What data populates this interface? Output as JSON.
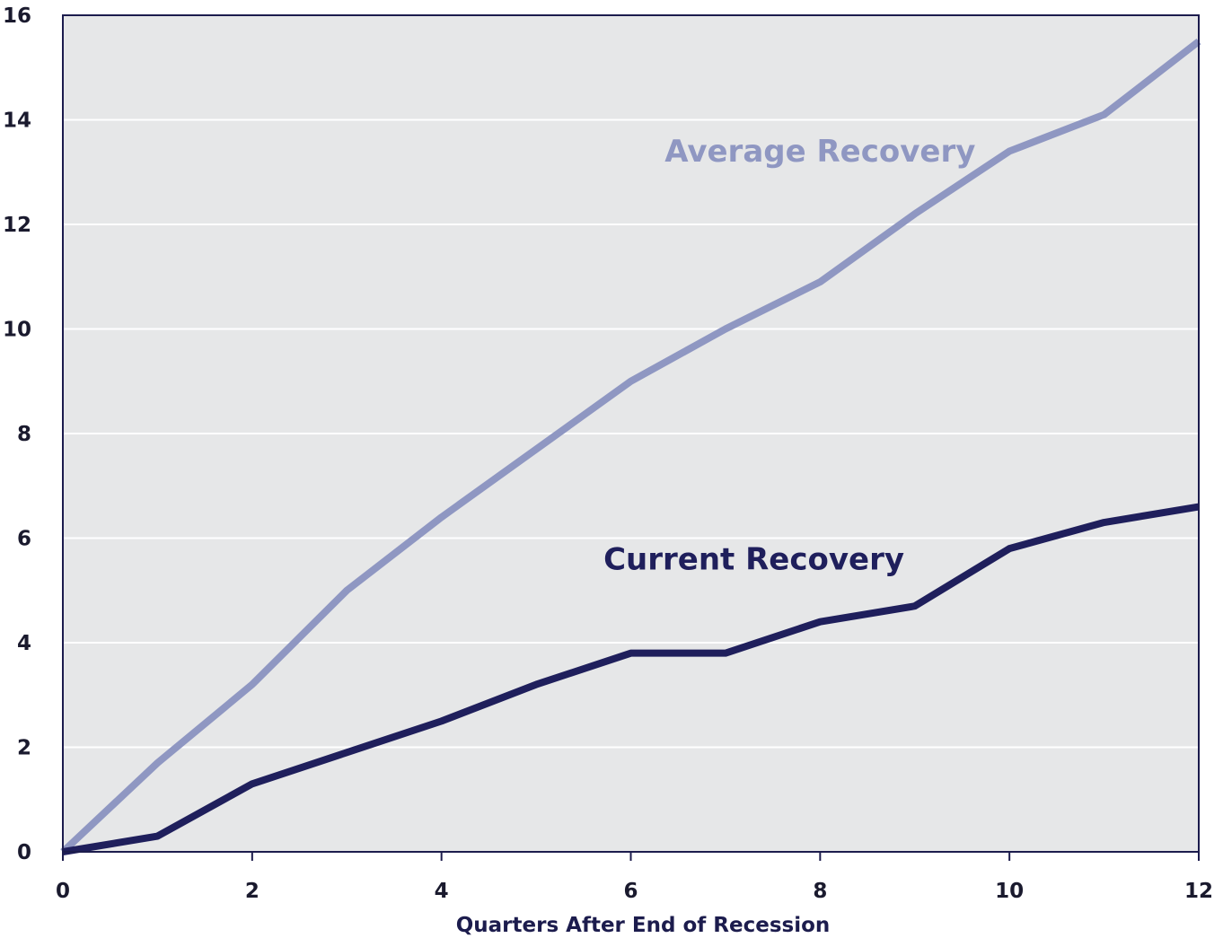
{
  "chart_data": {
    "type": "line",
    "title": "",
    "xlabel": "Quarters After End of Recession",
    "ylabel": "",
    "xlim": [
      0,
      12
    ],
    "ylim": [
      0,
      16
    ],
    "x_ticks": [
      0,
      2,
      4,
      6,
      8,
      10,
      12
    ],
    "y_ticks": [
      0,
      2,
      4,
      6,
      8,
      10,
      12,
      14,
      16
    ],
    "grid": true,
    "legend": "inline labels",
    "x": [
      0,
      1,
      2,
      3,
      4,
      5,
      6,
      7,
      8,
      9,
      10,
      11,
      12
    ],
    "series": [
      {
        "name": "Average Recovery",
        "color": "#8f97c2",
        "values": [
          0,
          1.7,
          3.2,
          5.0,
          6.4,
          7.7,
          9.0,
          10.0,
          10.9,
          12.2,
          13.4,
          14.1,
          15.5
        ],
        "label_at": [
          8.0,
          13.2
        ]
      },
      {
        "name": "Current Recovery",
        "color": "#1f1f5c",
        "values": [
          0,
          0.3,
          1.3,
          1.9,
          2.5,
          3.2,
          3.8,
          3.8,
          4.4,
          4.7,
          5.8,
          6.3,
          6.6
        ],
        "label_at": [
          7.3,
          5.4
        ]
      }
    ]
  }
}
